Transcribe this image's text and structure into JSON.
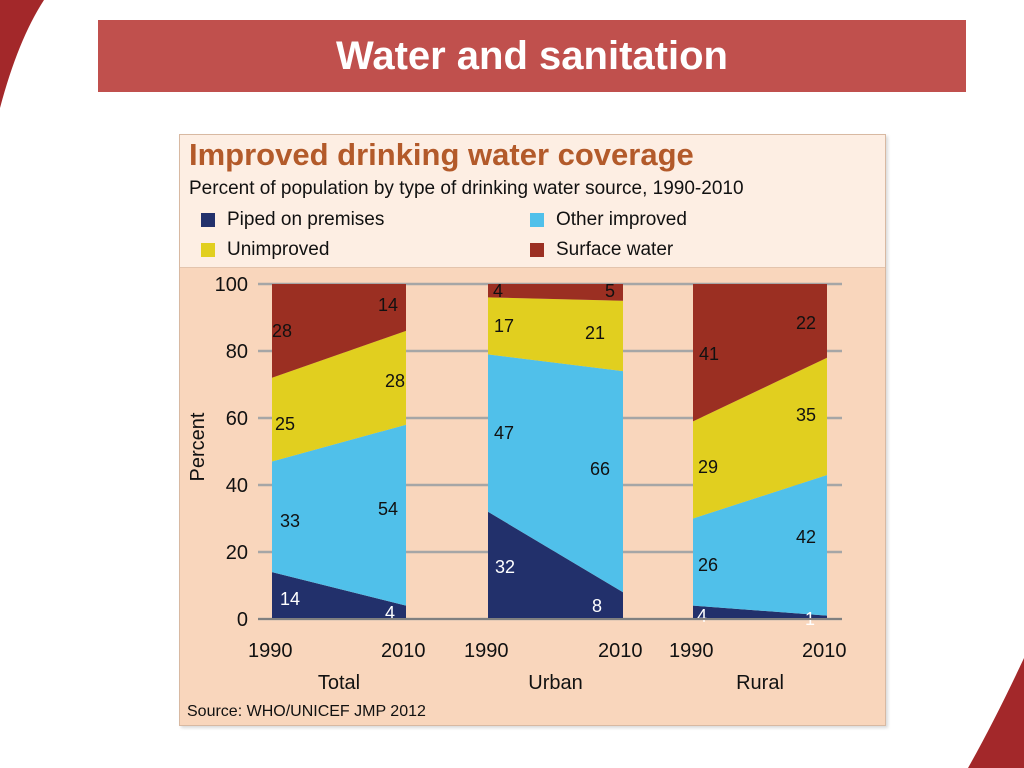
{
  "slide": {
    "title": "Water and sanitation"
  },
  "chart_data": {
    "type": "area",
    "title": "Improved drinking water coverage",
    "subtitle": "Percent of population by type of drinking water source, 1990-2010",
    "ylabel": "Percent",
    "ylim": [
      0,
      100
    ],
    "yticks": [
      "0",
      "20",
      "40",
      "60",
      "80",
      "100"
    ],
    "legend": [
      {
        "name": "Piped on premises",
        "color": "#22306b"
      },
      {
        "name": "Other improved",
        "color": "#50c0ea"
      },
      {
        "name": "Unimproved",
        "color": "#e1cf1f"
      },
      {
        "name": "Surface water",
        "color": "#9b2f22"
      }
    ],
    "groups": [
      {
        "name": "Total",
        "x": [
          "1990",
          "2010"
        ],
        "values": {
          "piped": [
            14,
            4
          ],
          "other": [
            33,
            54
          ],
          "unimproved": [
            25,
            28
          ],
          "surface": [
            28,
            14
          ]
        }
      },
      {
        "name": "Urban",
        "x": [
          "1990",
          "2010"
        ],
        "values": {
          "piped": [
            32,
            8
          ],
          "other": [
            47,
            66
          ],
          "unimproved": [
            17,
            21
          ],
          "surface": [
            4,
            5
          ]
        }
      },
      {
        "name": "Rural",
        "x": [
          "1990",
          "2010"
        ],
        "values": {
          "piped": [
            4,
            1
          ],
          "other": [
            26,
            42
          ],
          "unimproved": [
            29,
            35
          ],
          "surface": [
            41,
            22
          ]
        }
      }
    ],
    "source": "Source:  WHO/UNICEF JMP 2012"
  }
}
